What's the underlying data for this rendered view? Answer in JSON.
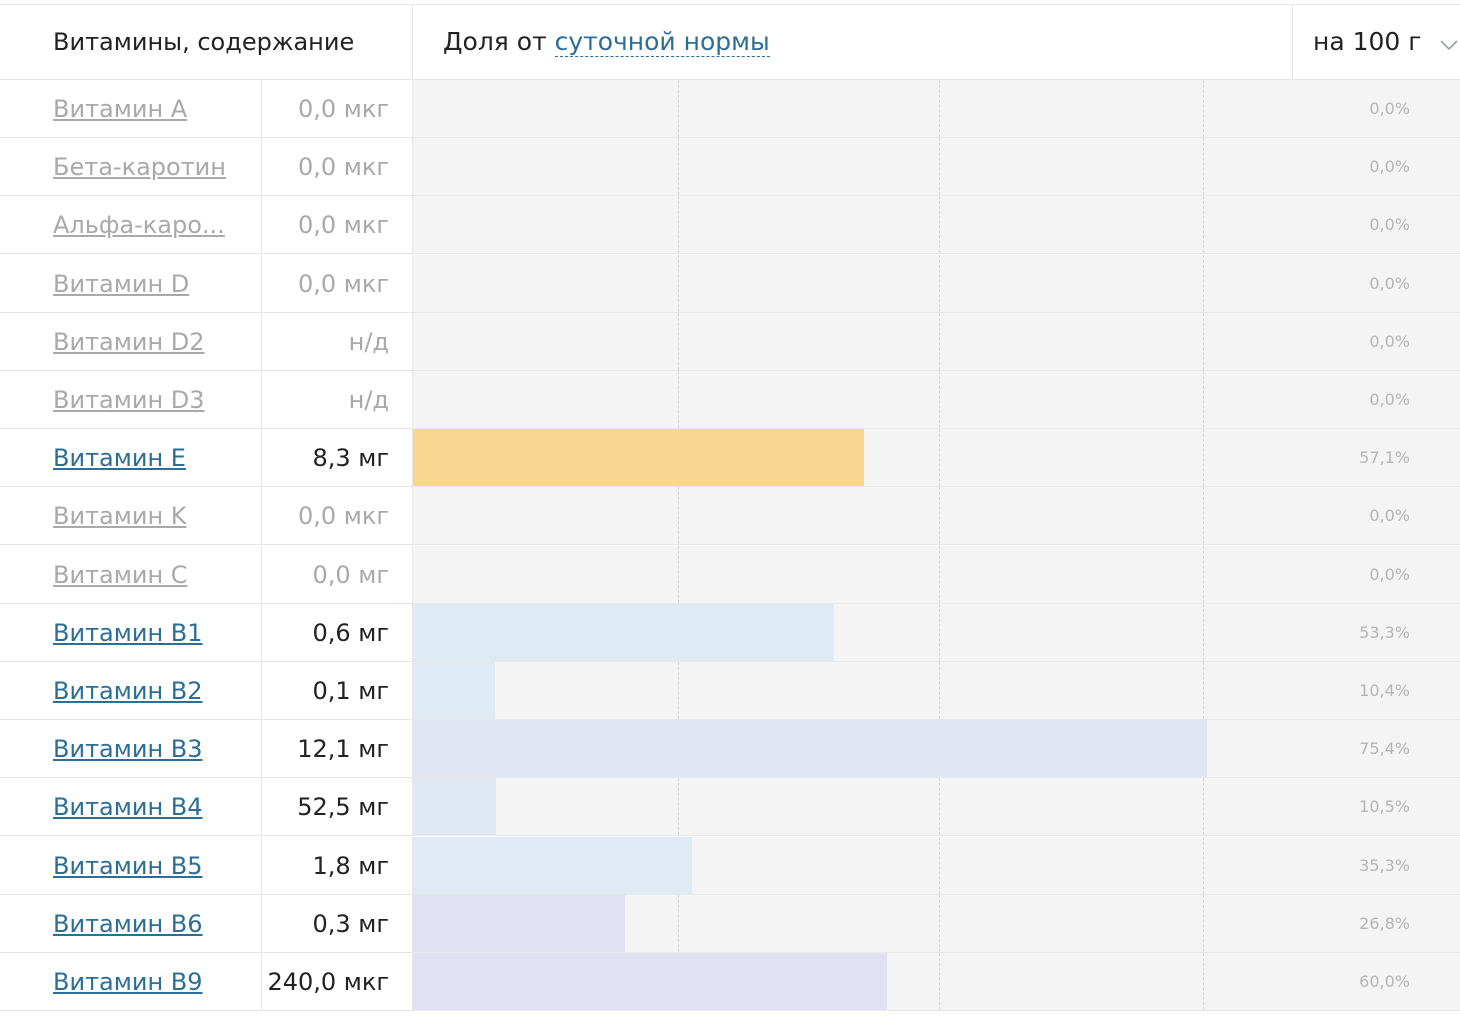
{
  "header": {
    "title": "Витамины, содержание",
    "norm_prefix": "Доля от",
    "norm_link": "суточной нормы",
    "per_select": "на 100 г",
    "per_icon": "chevron-down-icon"
  },
  "colors": {
    "link": "#2b6e96",
    "inactive": "#a9a9a9",
    "bar_bg": "#f4f4f5"
  },
  "vitamins": [
    {
      "name": "Витамин A",
      "value": "0,0 мкг",
      "percent_label": "0,0%",
      "percent": 0,
      "active": false,
      "color": ""
    },
    {
      "name": "Бета-каротин",
      "value": "0,0 мкг",
      "percent_label": "0,0%",
      "percent": 0,
      "active": false,
      "color": ""
    },
    {
      "name": "Альфа-каро...",
      "value": "0,0 мкг",
      "percent_label": "0,0%",
      "percent": 0,
      "active": false,
      "color": ""
    },
    {
      "name": "Витамин D",
      "value": "0,0 мкг",
      "percent_label": "0,0%",
      "percent": 0,
      "active": false,
      "color": ""
    },
    {
      "name": "Витамин D2",
      "value": "н/д",
      "percent_label": "0,0%",
      "percent": 0,
      "active": false,
      "color": ""
    },
    {
      "name": "Витамин D3",
      "value": "н/д",
      "percent_label": "0,0%",
      "percent": 0,
      "active": false,
      "color": ""
    },
    {
      "name": "Витамин E",
      "value": "8,3 мг",
      "percent_label": "57,1%",
      "percent": 57.1,
      "active": true,
      "color": "#f7d88e"
    },
    {
      "name": "Витамин K",
      "value": "0,0 мкг",
      "percent_label": "0,0%",
      "percent": 0,
      "active": false,
      "color": ""
    },
    {
      "name": "Витамин C",
      "value": "0,0 мг",
      "percent_label": "0,0%",
      "percent": 0,
      "active": false,
      "color": ""
    },
    {
      "name": "Витамин B1",
      "value": "0,6 мг",
      "percent_label": "53,3%",
      "percent": 53.3,
      "active": true,
      "color": "#dfebf4"
    },
    {
      "name": "Витамин B2",
      "value": "0,1 мг",
      "percent_label": "10,4%",
      "percent": 10.4,
      "active": true,
      "color": "#dfebf4"
    },
    {
      "name": "Витамин B3",
      "value": "12,1 мг",
      "percent_label": "75,4%",
      "percent": 75.4,
      "active": true,
      "color": "#e0e6f2"
    },
    {
      "name": "Витамин B4",
      "value": "52,5 мг",
      "percent_label": "10,5%",
      "percent": 10.5,
      "active": true,
      "color": "#dfe8f3"
    },
    {
      "name": "Витамин B5",
      "value": "1,8 мг",
      "percent_label": "35,3%",
      "percent": 35.3,
      "active": true,
      "color": "#dfeaf4"
    },
    {
      "name": "Витамин B6",
      "value": "0,3 мг",
      "percent_label": "26,8%",
      "percent": 26.8,
      "active": true,
      "color": "#e1e1f3"
    },
    {
      "name": "Витамин B9",
      "value": "240,0 мкг",
      "percent_label": "60,0%",
      "percent": 60.0,
      "active": true,
      "color": "#e1e1f3"
    }
  ]
}
